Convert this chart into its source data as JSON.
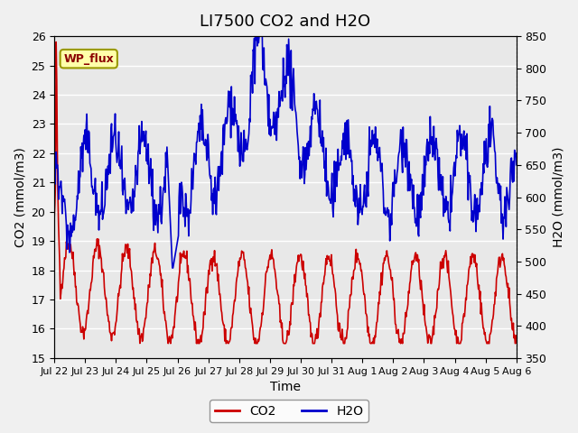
{
  "title": "LI7500 CO2 and H2O",
  "xlabel": "Time",
  "ylabel_left": "CO2 (mmol/m3)",
  "ylabel_right": "H2O (mmol/m3)",
  "ylim_left": [
    15.0,
    26.0
  ],
  "ylim_right": [
    350,
    850
  ],
  "yticks_left": [
    15.0,
    16.0,
    17.0,
    18.0,
    19.0,
    20.0,
    21.0,
    22.0,
    23.0,
    24.0,
    25.0,
    26.0
  ],
  "yticks_right": [
    350,
    400,
    450,
    500,
    550,
    600,
    650,
    700,
    750,
    800,
    850
  ],
  "xtick_labels": [
    "Jul 22",
    "Jul 23",
    "Jul 24",
    "Jul 25",
    "Jul 26",
    "Jul 27",
    "Jul 28",
    "Jul 29",
    "Jul 30",
    "Jul 31",
    "Aug 1",
    "Aug 2",
    "Aug 3",
    "Aug 4",
    "Aug 5",
    "Aug 6"
  ],
  "co2_color": "#cc0000",
  "h2o_color": "#0000cc",
  "annotation_text": "WP_flux",
  "annotation_bg": "#ffffaa",
  "annotation_border": "#999900",
  "bg_color": "#e8e8e8",
  "plot_bg": "#e8e8e8",
  "grid_color": "#ffffff",
  "title_fontsize": 13,
  "label_fontsize": 10,
  "tick_fontsize": 9,
  "legend_fontsize": 10
}
